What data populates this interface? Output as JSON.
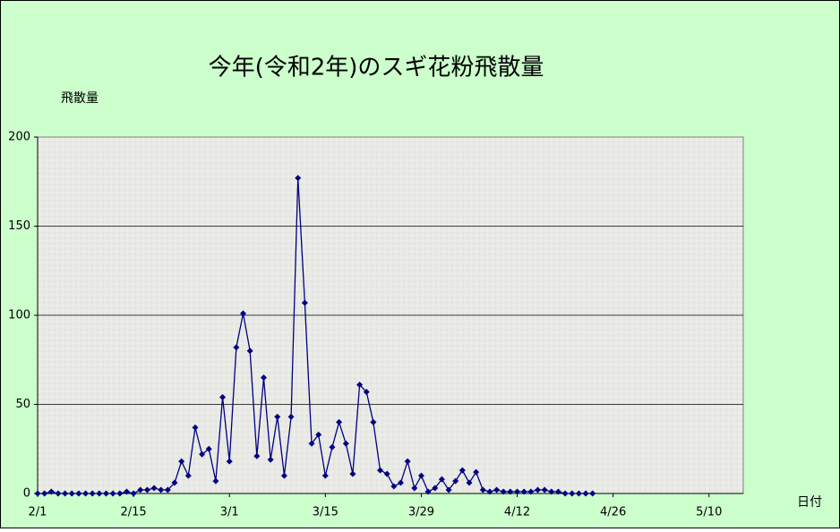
{
  "chart_data": {
    "type": "line",
    "title": "今年(令和2年)のスギ花粉飛散量",
    "y_label": "飛散量",
    "x_label": "日付",
    "categories": [
      "2/1",
      null,
      null,
      null,
      null,
      null,
      null,
      null,
      null,
      null,
      null,
      null,
      null,
      null,
      "2/15",
      null,
      null,
      null,
      null,
      null,
      null,
      null,
      null,
      null,
      null,
      null,
      null,
      null,
      "3/1",
      null,
      null,
      null,
      null,
      null,
      null,
      null,
      null,
      null,
      null,
      null,
      null,
      null,
      "3/15",
      null,
      null,
      null,
      null,
      null,
      null,
      null,
      null,
      null,
      null,
      null,
      null,
      null,
      "3/29",
      null,
      null,
      null,
      null,
      null,
      null,
      null,
      null,
      null,
      null,
      null,
      null,
      null,
      "4/12",
      null,
      null,
      null,
      null,
      null,
      null,
      null,
      null,
      null,
      null,
      null,
      null,
      null,
      "4/26",
      null,
      null,
      null,
      null,
      null,
      null,
      null,
      null,
      null,
      null,
      null,
      null,
      null,
      "5/10",
      null,
      null,
      null,
      null,
      null
    ],
    "series": [
      {
        "color": "#000080",
        "values": [
          0,
          0,
          1,
          0,
          0,
          0,
          0,
          0,
          0,
          0,
          0,
          0,
          0,
          1,
          0,
          2,
          2,
          3,
          2,
          2,
          6,
          18,
          10,
          37,
          22,
          25,
          7,
          54,
          18,
          82,
          101,
          80,
          21,
          65,
          19,
          43,
          10,
          43,
          177,
          107,
          28,
          33,
          10,
          26,
          40,
          28,
          11,
          61,
          57,
          40,
          13,
          11,
          4,
          6,
          18,
          3,
          10,
          1,
          3,
          8,
          2,
          7,
          13,
          6,
          12,
          2,
          1,
          2,
          1,
          1,
          1,
          1,
          1,
          2,
          2,
          1,
          1,
          0,
          0,
          0,
          0,
          0,
          null,
          null,
          null,
          null,
          null,
          null,
          null,
          null,
          null,
          null,
          null,
          null,
          null,
          null,
          null,
          null,
          null,
          null,
          null,
          null,
          null,
          null
        ]
      }
    ],
    "ylim": [
      0,
      200
    ],
    "yticks": [
      0,
      50,
      100,
      150,
      200
    ],
    "grid": true
  }
}
